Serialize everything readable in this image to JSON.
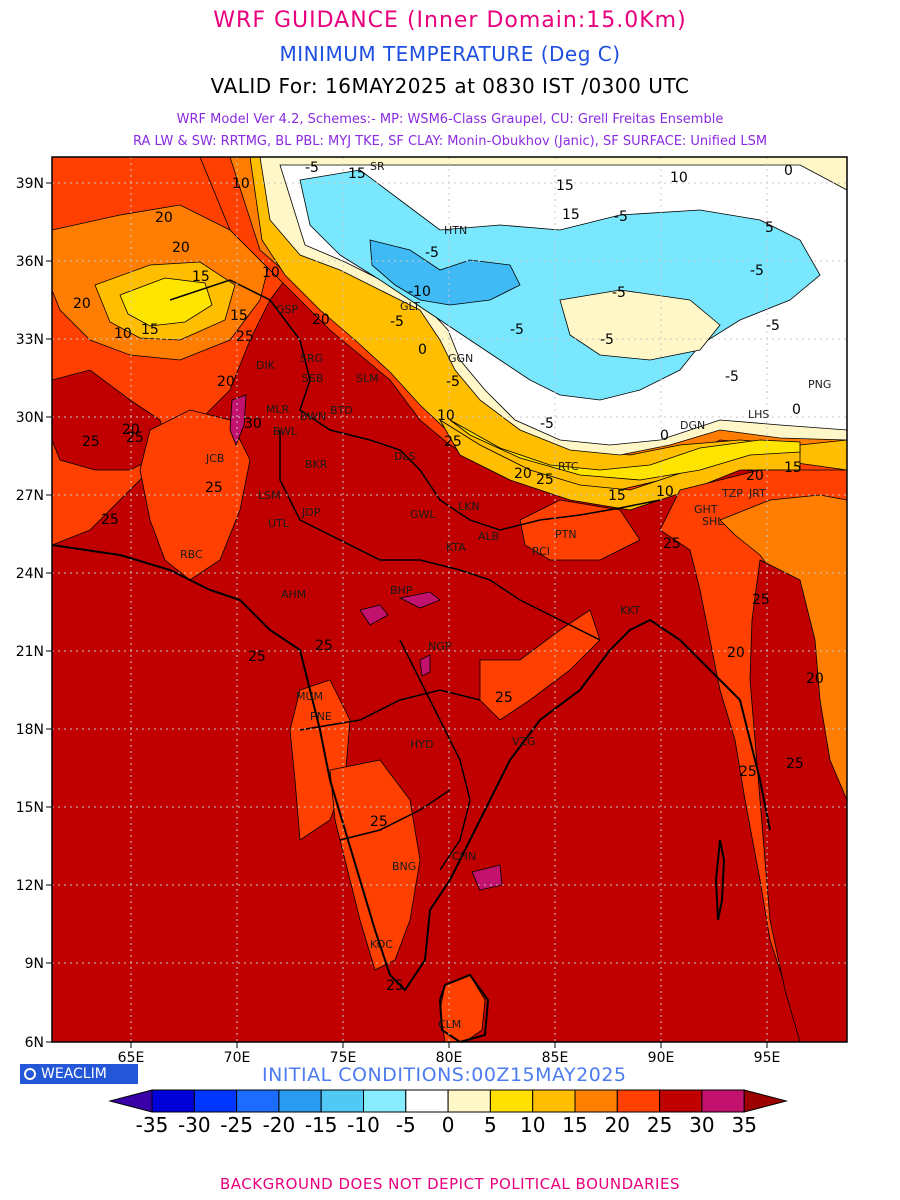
{
  "header": {
    "title": "WRF GUIDANCE (Inner Domain:15.0Km)",
    "subtitle": "MINIMUM TEMPERATURE (Deg C)",
    "valid": "VALID For: 16MAY2025 at 0830 IST /0300 UTC",
    "model_line1": "WRF Model Ver 4.2, Schemes:- MP: WSM6-Class Graupel, CU: Grell Freitas Ensemble",
    "model_line2": "RA LW & SW: RRTMG, BL PBL: MYJ TKE, SF CLAY: Monin-Obukhov (Janic), SF SURFACE: Unified LSM",
    "title_color": "#e8007e",
    "subtitle_color": "#1e4fe0",
    "model_color": "#8a2be2"
  },
  "map": {
    "lon_ticks": [
      "65E",
      "70E",
      "75E",
      "80E",
      "85E",
      "90E",
      "95E"
    ],
    "lat_ticks": [
      "39N",
      "36N",
      "33N",
      "30N",
      "27N",
      "24N",
      "21N",
      "18N",
      "15N",
      "12N",
      "9N",
      "6N"
    ],
    "station_codes": [
      "SR",
      "HTN",
      "GLT",
      "GGN",
      "SLM",
      "DLS",
      "BTD",
      "SRG",
      "DIK",
      "SSB",
      "MLR",
      "BWL",
      "BWN",
      "JCB",
      "BKR",
      "LSM",
      "JDP",
      "UTL",
      "LKN",
      "GWL",
      "ALB",
      "PTN",
      "KTA",
      "RBC",
      "BHP",
      "AHM",
      "NGP",
      "MUM",
      "PNE",
      "HYD",
      "VZG",
      "CHN",
      "BNG",
      "KOC",
      "CLM",
      "RCI",
      "KKT",
      "LHS",
      "GHT",
      "PNG",
      "TZP",
      "JRT",
      "SHL",
      "RTC",
      "GSP",
      "DGN"
    ],
    "contour_labels": [
      "-10",
      "-5",
      "0",
      "5",
      "10",
      "15",
      "20",
      "25",
      "30"
    ],
    "temperature_colors": {
      "above_30": "#c00000",
      "25_30": "#c00000",
      "20_25": "#ff4000",
      "15_20": "#ff7d00",
      "10_15": "#ffbe00",
      "5_10": "#ffe400",
      "0_5": "#fff7c8",
      "-5_0": "#ffffff",
      "-10_-5": "#79e8ff",
      "-15_-10": "#3fbaf5",
      "hot_spots": "#c3116e"
    }
  },
  "colorbar": {
    "labels": [
      "-35",
      "-30",
      "-25",
      "-20",
      "-15",
      "-10",
      "-5",
      "0",
      "5",
      "10",
      "15",
      "20",
      "25",
      "30",
      "35"
    ],
    "colors": [
      "#3a00a8",
      "#0000d8",
      "#0036ff",
      "#1c6cff",
      "#2a9bf0",
      "#52c8f5",
      "#88ecff",
      "#ffffff",
      "#fff7c8",
      "#ffe000",
      "#ffbe00",
      "#ff7f00",
      "#ff4000",
      "#c00000",
      "#c3116e",
      "#9d0000"
    ]
  },
  "footer": {
    "logo_text": "WEACLIM",
    "initial_conditions": "INITIAL  CONDITIONS:00Z15MAY2025",
    "initial_color": "#4d7cf0",
    "disclaimer": "BACKGROUND DOES NOT DEPICT POLITICAL BOUNDARIES",
    "disclaimer_color": "#e8007e",
    "logo_bg": "#2457d8"
  }
}
